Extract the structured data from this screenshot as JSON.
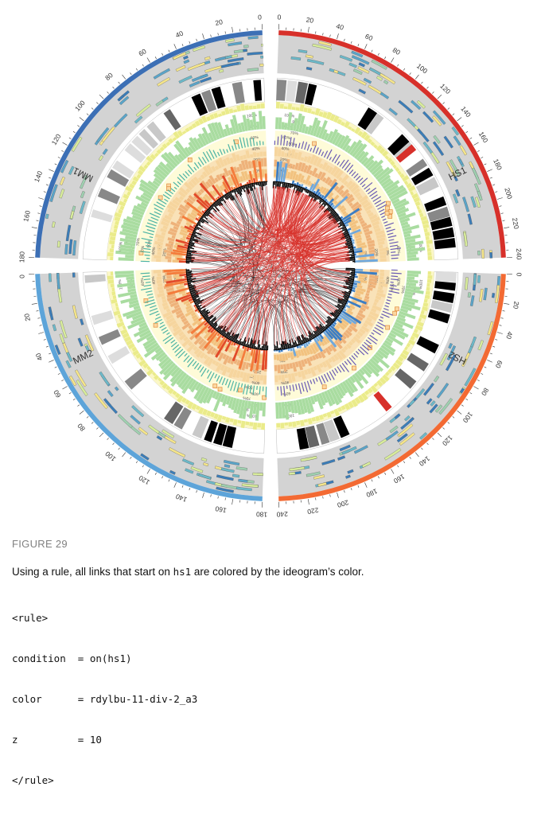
{
  "figure": {
    "ideograms": [
      {
        "label": "HS1",
        "color": "#d7302a",
        "start_deg": 2,
        "end_deg": 88,
        "ticks": [
          "0",
          "20",
          "40",
          "60",
          "80",
          "100",
          "120",
          "140",
          "160",
          "180",
          "200",
          "220",
          "240"
        ]
      },
      {
        "label": "HS2",
        "color": "#f36a33",
        "start_deg": 92,
        "end_deg": 178,
        "ticks": [
          "0",
          "20",
          "40",
          "60",
          "80",
          "100",
          "120",
          "140",
          "160",
          "180",
          "200",
          "220",
          "240"
        ]
      },
      {
        "label": "MM2",
        "color": "#5da4d9",
        "start_deg": 182,
        "end_deg": 268,
        "ticks": [
          "180",
          "160",
          "140",
          "120",
          "100",
          "80",
          "60",
          "40",
          "20",
          "0"
        ]
      },
      {
        "label": "MM1",
        "color": "#3c6fb5",
        "start_deg": 272,
        "end_deg": 358,
        "ticks": [
          "180",
          "160",
          "140",
          "120",
          "100",
          "80",
          "60",
          "40",
          "20",
          "0"
        ]
      }
    ],
    "percent_labels": [
      "0%",
      "10%",
      "20%",
      "30%",
      "40%",
      "50%",
      "60%",
      "70%",
      "80%",
      "90%",
      "100%"
    ],
    "link_colors": {
      "hs1": "#d7302a",
      "other": "#000000"
    }
  },
  "caption": {
    "label": "FIGURE 29",
    "text_before": "Using a rule, all links that start on ",
    "text_code": "hs1",
    "text_after": " are colored by the ideogram’s color.",
    "code_lines": [
      "<rule>",
      "condition  = on(hs1)",
      "color      = rdylbu-11-div-2_a3",
      "z          = 10",
      "</rule>"
    ]
  }
}
